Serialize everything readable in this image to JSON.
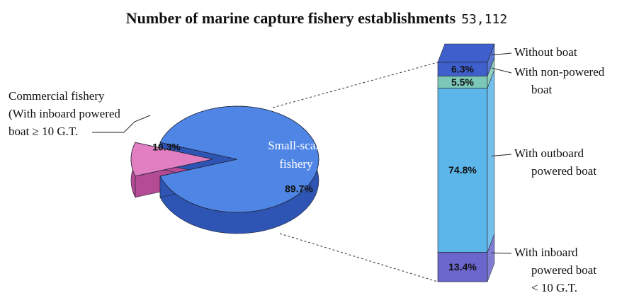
{
  "chart_data": [
    {
      "type": "pie",
      "title": "Number of marine capture fishery establishments",
      "subtitle": "53,112",
      "categories": [
        [
          "Commercial fishery",
          "(With inboard powered",
          "boat ≥ 10 G.T."
        ],
        [
          "Small-scale",
          "fishery"
        ]
      ],
      "values": [
        10.3,
        89.7
      ],
      "value_labels": [
        "10.3%",
        "89.7%"
      ],
      "colors": [
        "#e27fc3",
        "#4f86e6"
      ],
      "side_colors": [
        "#b34b95",
        "#2e55b3"
      ]
    },
    {
      "type": "stacked-bar",
      "series": [
        {
          "name": [
            "Without boat"
          ],
          "color": "#3f60cc",
          "values": [
            6.3
          ],
          "value_labels": [
            "6.3%"
          ]
        },
        {
          "name": [
            "With non-powered",
            "boat"
          ],
          "color": "#7cc8b8",
          "values": [
            5.5
          ],
          "value_labels": [
            "5.5%"
          ]
        },
        {
          "name": [
            "With outboard",
            "powered boat"
          ],
          "color": "#5cb6ea",
          "values": [
            74.8
          ],
          "value_labels": [
            "74.8%"
          ]
        },
        {
          "name": [
            "With inboard",
            "powered boat",
            "< 10 G.T."
          ],
          "color": "#6b66cc",
          "values": [
            13.4
          ],
          "value_labels": [
            "13.4%"
          ]
        }
      ]
    }
  ]
}
